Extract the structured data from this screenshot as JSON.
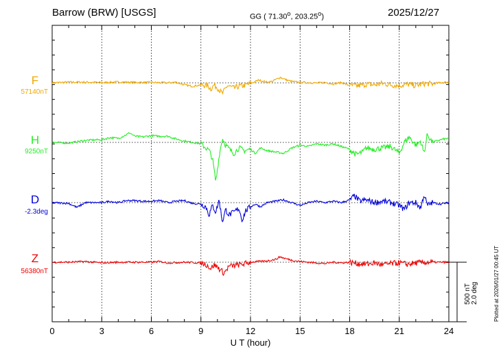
{
  "header": {
    "station": "Barrow (BRW)  [USGS]",
    "coords_prefix": "GG ( 71.30",
    "coords_mid": ", 203.25",
    "coords_suffix": ")",
    "degree_mark": "o",
    "date": "2025/12/27",
    "plotted_note": "Plotted at 2026/01/27 00:45 UT"
  },
  "chart_data": {
    "type": "line",
    "title": "Barrow (BRW) [USGS] 2025/12/27",
    "xlabel": "U T (hour)",
    "xlim": [
      0,
      24
    ],
    "x_ticks": [
      "0",
      "3",
      "6",
      "9",
      "12",
      "15",
      "18",
      "21",
      "24"
    ],
    "scale_labels": [
      "500 nT",
      "2.0 deg"
    ],
    "series": [
      {
        "name": "F",
        "baseline_label": "57140nT",
        "color": "#f0a800",
        "points": [
          [
            0,
            0
          ],
          [
            1,
            5
          ],
          [
            2,
            5
          ],
          [
            3,
            2
          ],
          [
            4,
            6
          ],
          [
            5,
            3
          ],
          [
            6,
            3
          ],
          [
            7,
            0
          ],
          [
            7.5,
            5
          ],
          [
            8,
            -15
          ],
          [
            8.5,
            -25
          ],
          [
            9,
            -15
          ],
          [
            9.4,
            -20
          ],
          [
            9.6,
            -45
          ],
          [
            9.8,
            -15
          ],
          [
            10,
            -35
          ],
          [
            10.3,
            -80
          ],
          [
            10.6,
            -20
          ],
          [
            11,
            -40
          ],
          [
            11.3,
            -25
          ],
          [
            11.6,
            -20
          ],
          [
            12,
            -5
          ],
          [
            12.5,
            20
          ],
          [
            13,
            5
          ],
          [
            13.3,
            10
          ],
          [
            13.8,
            40
          ],
          [
            14.2,
            20
          ],
          [
            14.5,
            10
          ],
          [
            15,
            3
          ],
          [
            15.5,
            2
          ],
          [
            16,
            -2
          ],
          [
            16.5,
            3
          ],
          [
            17,
            -8
          ],
          [
            17.5,
            2
          ],
          [
            18,
            -20
          ],
          [
            18.5,
            -22
          ],
          [
            19,
            -10
          ],
          [
            19.5,
            -15
          ],
          [
            20,
            -5
          ],
          [
            20.5,
            -15
          ],
          [
            21,
            -20
          ],
          [
            21.5,
            -10
          ],
          [
            22,
            -20
          ],
          [
            22.5,
            -5
          ],
          [
            23,
            -8
          ],
          [
            23.5,
            2
          ],
          [
            24,
            5
          ]
        ]
      },
      {
        "name": "H",
        "baseline_label": "9250nT",
        "color": "#22ee22",
        "points": [
          [
            0,
            0
          ],
          [
            1,
            -5
          ],
          [
            2,
            15
          ],
          [
            3,
            20
          ],
          [
            3.5,
            35
          ],
          [
            4,
            30
          ],
          [
            4.3,
            45
          ],
          [
            4.7,
            70
          ],
          [
            5,
            45
          ],
          [
            5.5,
            40
          ],
          [
            6,
            50
          ],
          [
            6.5,
            45
          ],
          [
            7,
            45
          ],
          [
            7.5,
            25
          ],
          [
            8,
            10
          ],
          [
            8.5,
            0
          ],
          [
            9,
            -10
          ],
          [
            9.3,
            -40
          ],
          [
            9.5,
            -60
          ],
          [
            9.7,
            -120
          ],
          [
            9.9,
            -290
          ],
          [
            10.1,
            -100
          ],
          [
            10.3,
            30
          ],
          [
            10.5,
            -20
          ],
          [
            10.8,
            -60
          ],
          [
            11,
            -80
          ],
          [
            11.3,
            -40
          ],
          [
            11.6,
            -60
          ],
          [
            12,
            -50
          ],
          [
            12.3,
            -80
          ],
          [
            12.6,
            -40
          ],
          [
            13,
            -60
          ],
          [
            13.5,
            -70
          ],
          [
            14,
            -80
          ],
          [
            14.5,
            -40
          ],
          [
            15,
            -20
          ],
          [
            15.5,
            -30
          ],
          [
            16,
            -10
          ],
          [
            16.5,
            -20
          ],
          [
            17,
            -10
          ],
          [
            17.5,
            -30
          ],
          [
            18,
            -50
          ],
          [
            18.4,
            -90
          ],
          [
            18.8,
            -70
          ],
          [
            19,
            -40
          ],
          [
            19.5,
            -50
          ],
          [
            20,
            -40
          ],
          [
            20.5,
            -30
          ],
          [
            21,
            -80
          ],
          [
            21.3,
            0
          ],
          [
            21.6,
            40
          ],
          [
            22,
            -20
          ],
          [
            22.3,
            10
          ],
          [
            22.5,
            -80
          ],
          [
            22.7,
            60
          ],
          [
            23,
            0
          ],
          [
            23.5,
            20
          ],
          [
            24,
            30
          ]
        ]
      },
      {
        "name": "D",
        "baseline_label": "-2.3deg",
        "color": "#0000dd",
        "points": [
          [
            0,
            0
          ],
          [
            1,
            -5
          ],
          [
            1.5,
            -35
          ],
          [
            2,
            0
          ],
          [
            3,
            0
          ],
          [
            3.5,
            10
          ],
          [
            4,
            0
          ],
          [
            4.5,
            15
          ],
          [
            5,
            15
          ],
          [
            5.5,
            10
          ],
          [
            6,
            10
          ],
          [
            6.5,
            15
          ],
          [
            7,
            0
          ],
          [
            7.5,
            10
          ],
          [
            8,
            15
          ],
          [
            8.5,
            -5
          ],
          [
            9,
            -10
          ],
          [
            9.3,
            -30
          ],
          [
            9.5,
            -90
          ],
          [
            9.7,
            -20
          ],
          [
            9.9,
            -70
          ],
          [
            10.1,
            20
          ],
          [
            10.3,
            -140
          ],
          [
            10.5,
            -50
          ],
          [
            10.7,
            -90
          ],
          [
            11,
            -70
          ],
          [
            11.3,
            -40
          ],
          [
            11.5,
            -130
          ],
          [
            11.7,
            -60
          ],
          [
            12,
            -30
          ],
          [
            12.3,
            -10
          ],
          [
            12.6,
            -30
          ],
          [
            13,
            0
          ],
          [
            13.5,
            10
          ],
          [
            14,
            20
          ],
          [
            14.5,
            0
          ],
          [
            15,
            -20
          ],
          [
            15.5,
            0
          ],
          [
            16,
            10
          ],
          [
            16.5,
            0
          ],
          [
            17,
            10
          ],
          [
            17.5,
            0
          ],
          [
            18,
            20
          ],
          [
            18.3,
            50
          ],
          [
            18.6,
            10
          ],
          [
            19,
            20
          ],
          [
            19.5,
            0
          ],
          [
            20,
            10
          ],
          [
            20.5,
            0
          ],
          [
            21,
            -20
          ],
          [
            21.3,
            -50
          ],
          [
            21.6,
            0
          ],
          [
            22,
            0
          ],
          [
            22.3,
            -40
          ],
          [
            22.5,
            60
          ],
          [
            22.7,
            -20
          ],
          [
            23,
            0
          ],
          [
            23.5,
            -10
          ],
          [
            24,
            0
          ]
        ]
      },
      {
        "name": "Z",
        "baseline_label": "56380nT",
        "color": "#ee0000",
        "points": [
          [
            0,
            0
          ],
          [
            1,
            0
          ],
          [
            2,
            5
          ],
          [
            3,
            -5
          ],
          [
            4,
            0
          ],
          [
            5,
            0
          ],
          [
            6,
            0
          ],
          [
            6.5,
            5
          ],
          [
            7,
            -5
          ],
          [
            8,
            0
          ],
          [
            9,
            -5
          ],
          [
            9.3,
            -15
          ],
          [
            9.6,
            -45
          ],
          [
            9.8,
            -20
          ],
          [
            10,
            -35
          ],
          [
            10.4,
            -80
          ],
          [
            10.7,
            -30
          ],
          [
            11,
            -25
          ],
          [
            11.5,
            -15
          ],
          [
            12,
            0
          ],
          [
            12.5,
            5
          ],
          [
            13,
            10
          ],
          [
            13.5,
            20
          ],
          [
            13.8,
            40
          ],
          [
            14,
            30
          ],
          [
            14.5,
            15
          ],
          [
            15,
            5
          ],
          [
            15.5,
            0
          ],
          [
            16,
            -5
          ],
          [
            16.5,
            -10
          ],
          [
            17,
            0
          ],
          [
            17.5,
            -5
          ],
          [
            18,
            0
          ],
          [
            18.5,
            -10
          ],
          [
            19,
            -15
          ],
          [
            19.5,
            -5
          ],
          [
            20,
            -20
          ],
          [
            20.5,
            -10
          ],
          [
            21,
            -5
          ],
          [
            21.5,
            -15
          ],
          [
            22,
            -5
          ],
          [
            23,
            0
          ],
          [
            24,
            0
          ]
        ]
      }
    ]
  }
}
